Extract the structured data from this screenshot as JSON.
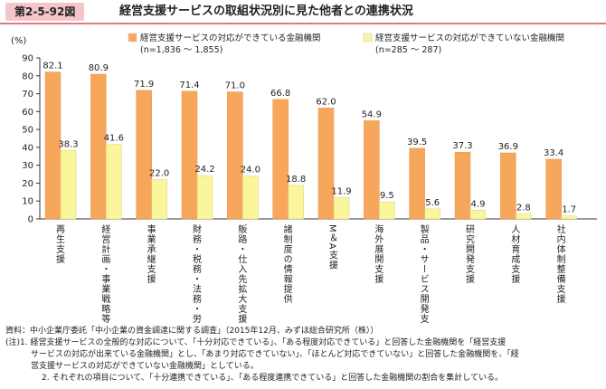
{
  "figure": {
    "number": "第2-5-92図",
    "title": "経営支援サービスの取組状況別に見た他者との連携状況"
  },
  "chart_data": {
    "type": "bar",
    "y_unit_label": "(%)",
    "ylim": [
      0,
      90
    ],
    "yticks": [
      0,
      10,
      20,
      30,
      40,
      50,
      60,
      70,
      80,
      90
    ],
    "grid": false,
    "legend_position": "top",
    "categories": [
      "再生支援",
      "経営計画・事業戦略等策定支援",
      "事業承継支援",
      "財務・税務・法務・労務相談",
      "販路・仕入先拡大支援",
      "諸制度の情報提供",
      "M＆A支援",
      "海外展開支援",
      "製品・サービス開発支援",
      "研究開発支援",
      "人材育成支援",
      "社内体制整備支援"
    ],
    "series": [
      {
        "name": "経営支援サービスの対応ができている金融機関",
        "n_label": "(n=1,836 ～ 1,855)",
        "color": "#f7a75c",
        "values": [
          82.1,
          80.9,
          71.9,
          71.4,
          71.0,
          66.8,
          62.0,
          54.9,
          39.5,
          37.3,
          36.9,
          33.4
        ]
      },
      {
        "name": "経営支援サービスの対応ができていない金融機関",
        "n_label": "(n=285 ～ 287)",
        "color": "#fbf59b",
        "values": [
          38.3,
          41.6,
          22.0,
          24.2,
          24.0,
          18.8,
          11.9,
          9.5,
          5.6,
          4.9,
          2.8,
          1.7
        ]
      }
    ]
  },
  "notes": {
    "source": "資料：中小企業庁委託「中小企業の資金調達に関する調査」（2015年12月、みずほ総合研究所（株））",
    "note1_line1": "(注)1. 経営支援サービスの全般的な対応について、「十分対応できている」、「ある程度対応できている」と回答した金融機関を「経営支援",
    "note1_line2": "サービスの対応が出来ている金融機関」とし、「あまり対応できていない」、「ほとんど対応できていない」と回答した金融機関を、「経",
    "note1_line3": "営支援サービスの対応ができていない金融機関」としている。",
    "note2": "2. それぞれの項目について、「十分連携できている」、「ある程度連携できている」と回答した金融機関の割合を集計している。"
  }
}
